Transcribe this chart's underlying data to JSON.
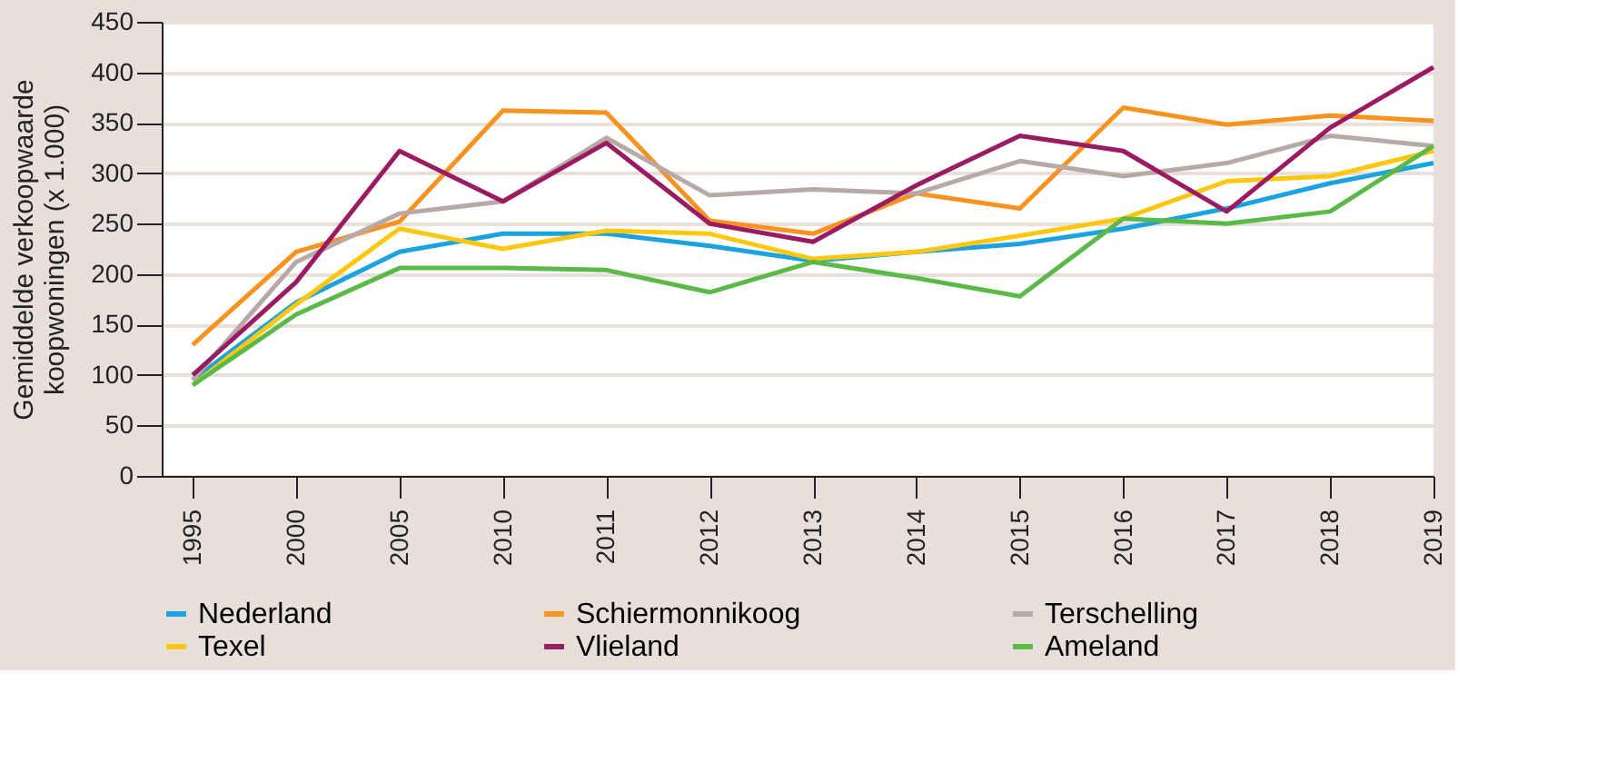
{
  "chart_data": {
    "type": "line",
    "ylabel": "Gemiddelde verkoopwaarde\nkoopwoningen (x 1.000)",
    "categories": [
      "1995",
      "2000",
      "2005",
      "2010",
      "2011",
      "2012",
      "2013",
      "2014",
      "2015",
      "2016",
      "2017",
      "2018",
      "2019"
    ],
    "ylim": [
      0,
      450
    ],
    "yticks": [
      0,
      50,
      100,
      150,
      200,
      250,
      300,
      350,
      400,
      450
    ],
    "grid": "y",
    "legend": "bottom",
    "line_style": "solid",
    "series": [
      {
        "name": "Nederland",
        "color": "#1aa3e0",
        "values": [
          95,
          172,
          222,
          240,
          240,
          228,
          213,
          222,
          230,
          245,
          265,
          290,
          310
        ]
      },
      {
        "name": "Schiermonnikoog",
        "color": "#f7931e",
        "values": [
          130,
          222,
          252,
          362,
          360,
          253,
          240,
          280,
          265,
          365,
          348,
          357,
          352
        ]
      },
      {
        "name": "Terschelling",
        "color": "#b7aaa6",
        "values": [
          95,
          212,
          260,
          272,
          335,
          278,
          284,
          280,
          312,
          297,
          310,
          337,
          327
        ]
      },
      {
        "name": "Texel",
        "color": "#fdc70f",
        "values": [
          90,
          170,
          245,
          225,
          243,
          240,
          215,
          222,
          238,
          255,
          292,
          297,
          322
        ]
      },
      {
        "name": "Vlieland",
        "color": "#9b1b63",
        "values": [
          100,
          192,
          322,
          272,
          330,
          250,
          232,
          288,
          337,
          322,
          262,
          345,
          405
        ]
      },
      {
        "name": "Ameland",
        "color": "#5bb947",
        "values": [
          90,
          160,
          206,
          206,
          204,
          182,
          212,
          196,
          178,
          255,
          250,
          262,
          327
        ]
      }
    ]
  }
}
